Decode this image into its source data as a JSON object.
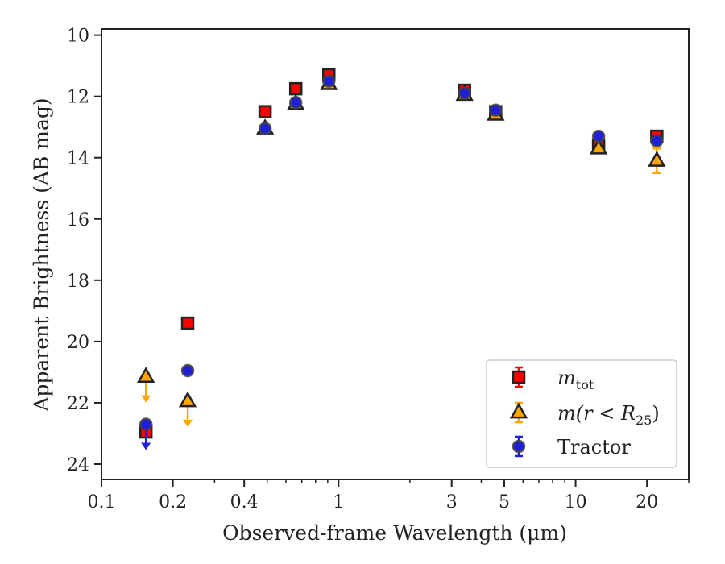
{
  "chart_data": {
    "type": "scatter",
    "xlabel": "Observed-frame Wavelength (μm)",
    "ylabel": "Apparent Brightness (AB mag)",
    "xscale": "log",
    "xlim": [
      0.1,
      30
    ],
    "ylim": [
      24.5,
      9.8
    ],
    "y_inverted": true,
    "x_ticks": [
      {
        "value": 0.1,
        "label": "0.1"
      },
      {
        "value": 0.2,
        "label": "0.2"
      },
      {
        "value": 0.4,
        "label": "0.4"
      },
      {
        "value": 1,
        "label": "1"
      },
      {
        "value": 3,
        "label": "3"
      },
      {
        "value": 5,
        "label": "5"
      },
      {
        "value": 10,
        "label": "10"
      },
      {
        "value": 20,
        "label": "20"
      }
    ],
    "y_ticks": [
      {
        "value": 10,
        "label": "10"
      },
      {
        "value": 12,
        "label": "12"
      },
      {
        "value": 14,
        "label": "14"
      },
      {
        "value": 16,
        "label": "16"
      },
      {
        "value": 18,
        "label": "18"
      },
      {
        "value": 20,
        "label": "20"
      },
      {
        "value": 22,
        "label": "22"
      },
      {
        "value": 24,
        "label": "24"
      }
    ],
    "grid": false,
    "legend_position": "lower right",
    "series": [
      {
        "name": "m_tot",
        "legend_label": "m",
        "legend_sub": "tot",
        "marker": "square",
        "color": "#ff0000",
        "edge": "#222222",
        "points": [
          {
            "x": 0.154,
            "y": 22.95
          },
          {
            "x": 0.231,
            "y": 19.4
          },
          {
            "x": 0.49,
            "y": 12.5
          },
          {
            "x": 0.66,
            "y": 11.75
          },
          {
            "x": 0.91,
            "y": 11.3
          },
          {
            "x": 3.4,
            "y": 11.8
          },
          {
            "x": 4.6,
            "y": 12.5
          },
          {
            "x": 12.5,
            "y": 13.6
          },
          {
            "x": 22.0,
            "y": 13.3
          }
        ]
      },
      {
        "name": "m(r < R25)",
        "legend_label": "m(r < R",
        "legend_sub": "25",
        "legend_suffix": ")",
        "marker": "triangle",
        "color": "#ffa500",
        "edge": "#222222",
        "points": [
          {
            "x": 0.154,
            "y": 21.15,
            "upper_limit": true
          },
          {
            "x": 0.231,
            "y": 21.95,
            "upper_limit": true
          },
          {
            "x": 0.49,
            "y": 13.05
          },
          {
            "x": 0.66,
            "y": 12.25
          },
          {
            "x": 0.91,
            "y": 11.6
          },
          {
            "x": 3.4,
            "y": 11.95
          },
          {
            "x": 4.6,
            "y": 12.6
          },
          {
            "x": 12.5,
            "y": 13.7
          },
          {
            "x": 22.0,
            "y": 14.1,
            "err": 0.4
          }
        ]
      },
      {
        "name": "Tractor",
        "legend_label": "Tractor",
        "marker": "circle",
        "color": "#1f1fd8",
        "edge": "#444444",
        "points": [
          {
            "x": 0.154,
            "y": 22.7,
            "upper_limit": true
          },
          {
            "x": 0.231,
            "y": 20.95
          },
          {
            "x": 0.49,
            "y": 13.05
          },
          {
            "x": 0.66,
            "y": 12.2
          },
          {
            "x": 0.91,
            "y": 11.5
          },
          {
            "x": 3.4,
            "y": 11.9
          },
          {
            "x": 4.6,
            "y": 12.45
          },
          {
            "x": 12.5,
            "y": 13.3
          },
          {
            "x": 22.0,
            "y": 13.45
          }
        ]
      }
    ]
  }
}
